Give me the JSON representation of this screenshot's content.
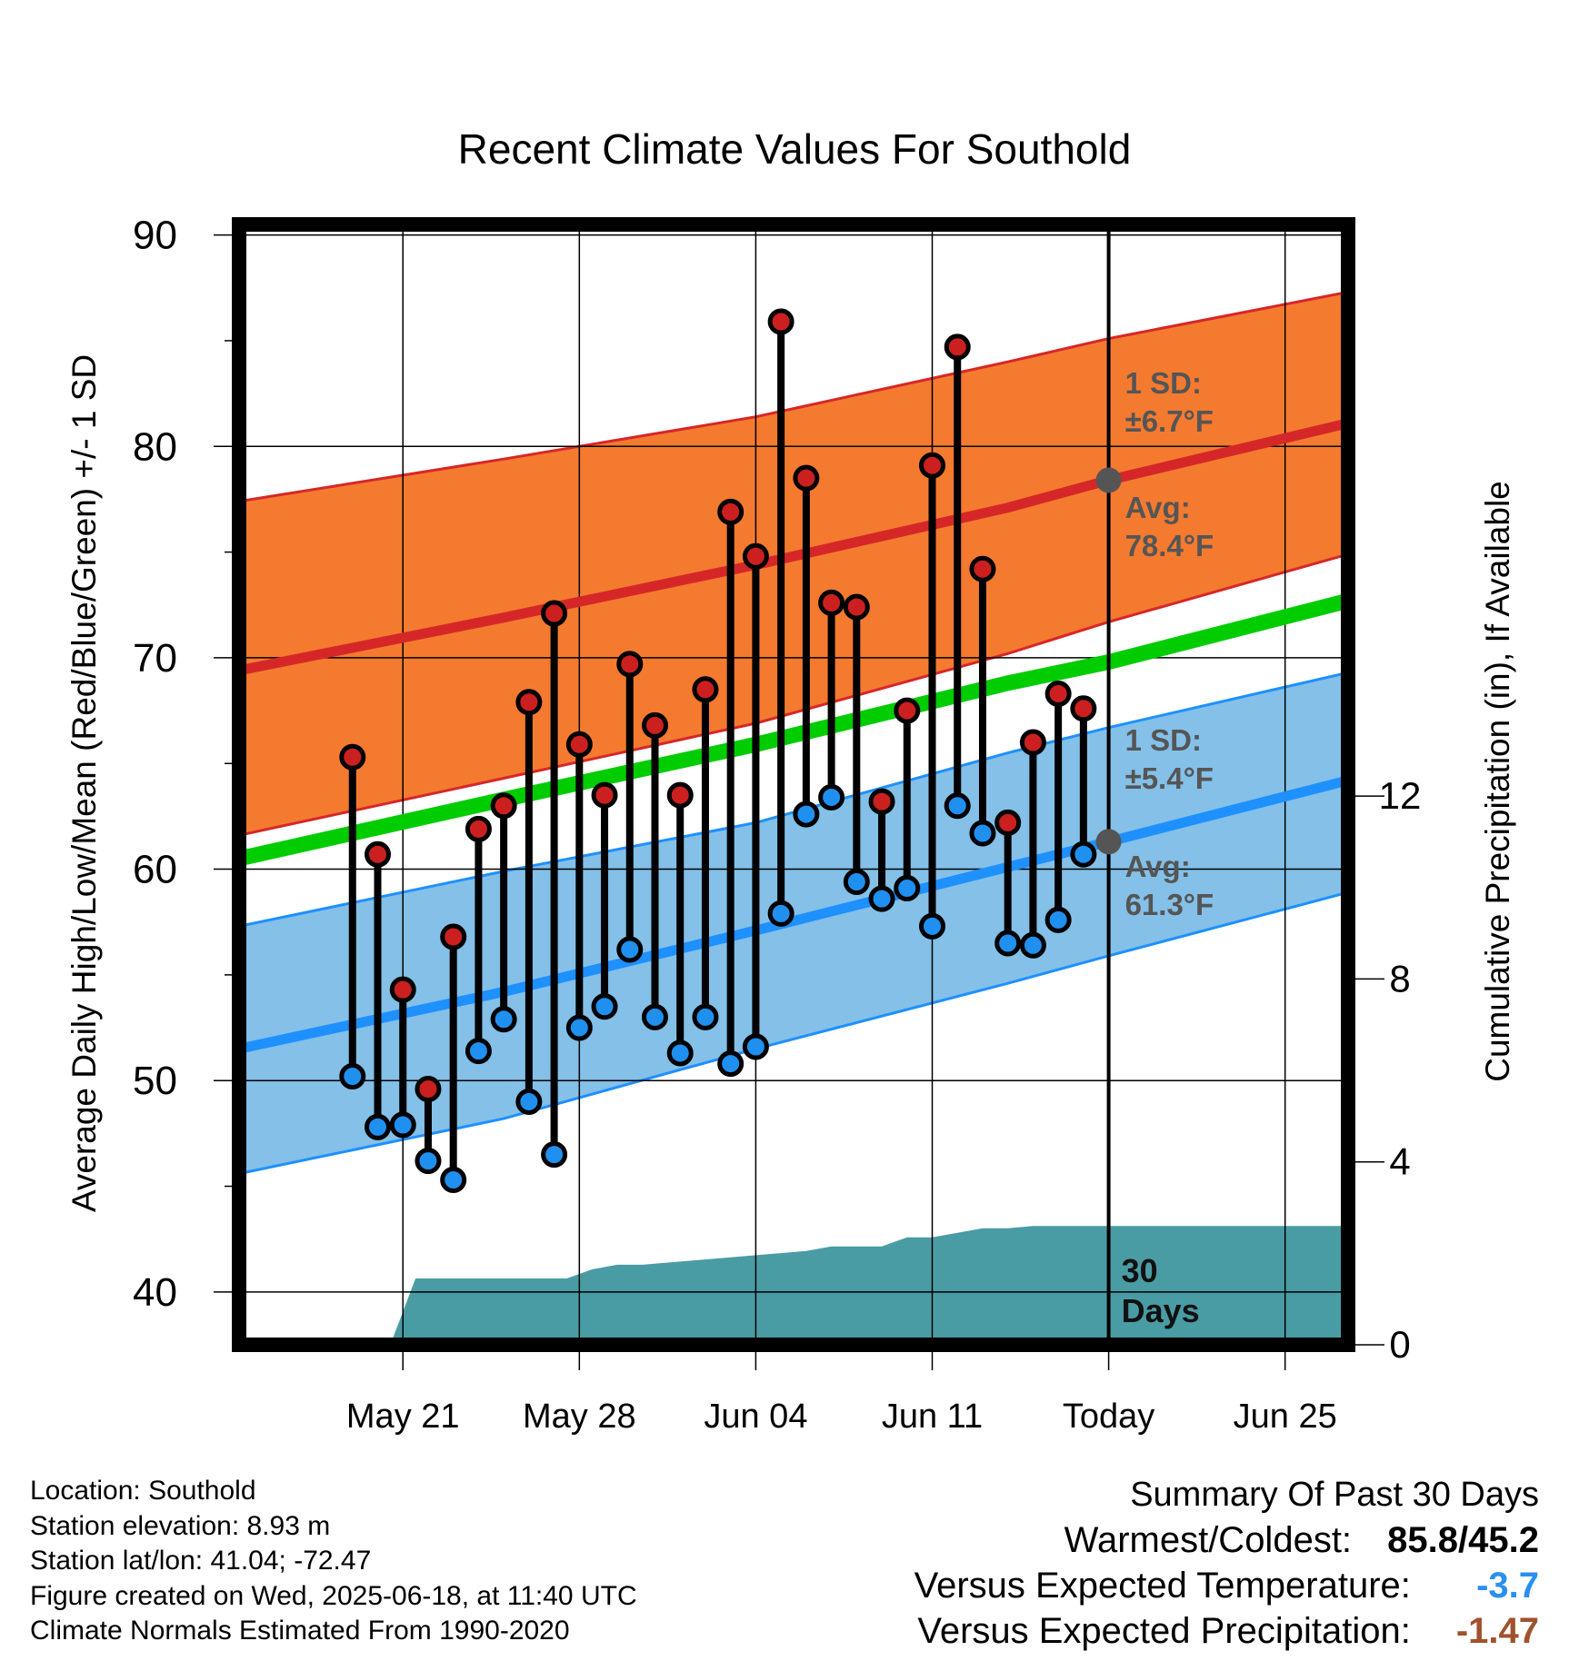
{
  "chart_data": {
    "type": "line",
    "title": "Recent Climate Values For Southold",
    "xlabel": "Day",
    "ylabel": "Average Daily High/Low/Mean (Red/Blue/Green) +/- 1 SD",
    "y2label": "Cumulative Precipitation (in), If Available",
    "ylim": [
      37.5,
      90.5
    ],
    "y2lim": [
      0,
      24.5
    ],
    "xlim_days": [
      -34.5,
      9.5
    ],
    "x_tick_labels": [
      {
        "day": -28,
        "label": "May 21"
      },
      {
        "day": -21,
        "label": "May 28"
      },
      {
        "day": -14,
        "label": "Jun 04"
      },
      {
        "day": -7,
        "label": "Jun 11"
      },
      {
        "day": 0,
        "label": "Today"
      },
      {
        "day": 7,
        "label": "Jun 25"
      }
    ],
    "y_ticks": [
      40,
      50,
      60,
      70,
      80,
      90
    ],
    "y2_ticks": [
      0,
      4,
      8,
      12
    ],
    "grid": true,
    "today_day": 0,
    "normals": {
      "days": [
        -34.5,
        -24,
        -14,
        -4,
        0,
        9.5
      ],
      "high_mean": [
        69.4,
        71.9,
        74.4,
        77.1,
        78.4,
        81.1
      ],
      "high_upper": [
        77.4,
        79.4,
        81.4,
        84.0,
        85.1,
        87.3
      ],
      "high_lower": [
        61.6,
        64.3,
        66.9,
        70.2,
        71.7,
        74.9
      ],
      "avg_mean": [
        60.5,
        63.3,
        65.9,
        68.8,
        69.8,
        72.7
      ],
      "low_mean": [
        51.5,
        54.2,
        57.1,
        60.1,
        61.3,
        64.2
      ],
      "low_upper": [
        57.3,
        59.9,
        62.2,
        65.5,
        66.7,
        69.3
      ],
      "low_lower": [
        45.6,
        48.2,
        51.5,
        54.6,
        55.9,
        58.9
      ]
    },
    "series": [
      {
        "name": "High",
        "color": "#cc2020",
        "days": [
          -30,
          -29,
          -28,
          -27,
          -26,
          -25,
          -24,
          -23,
          -22,
          -21,
          -20,
          -19,
          -18,
          -17,
          -16,
          -15,
          -14,
          -13,
          -12,
          -11,
          -10,
          -9,
          -8,
          -7,
          -6,
          -5,
          -4,
          -3,
          -2,
          -1
        ],
        "values": [
          65.3,
          60.7,
          54.3,
          49.6,
          56.8,
          61.9,
          63.0,
          67.9,
          72.1,
          65.9,
          63.5,
          69.7,
          66.8,
          63.5,
          68.5,
          76.9,
          74.8,
          85.9,
          78.5,
          72.6,
          72.4,
          63.2,
          67.5,
          79.1,
          84.7,
          74.2,
          62.2,
          66.0,
          68.3,
          67.6
        ]
      },
      {
        "name": "Low",
        "color": "#2090f0",
        "days": [
          -30,
          -29,
          -28,
          -27,
          -26,
          -25,
          -24,
          -23,
          -22,
          -21,
          -20,
          -19,
          -18,
          -17,
          -16,
          -15,
          -14,
          -13,
          -12,
          -11,
          -10,
          -9,
          -8,
          -7,
          -6,
          -5,
          -4,
          -3,
          -2,
          -1
        ],
        "values": [
          50.2,
          47.8,
          47.9,
          46.2,
          45.3,
          51.4,
          52.9,
          49.0,
          46.5,
          52.5,
          53.5,
          56.2,
          53.0,
          51.3,
          53.0,
          50.8,
          51.6,
          57.9,
          62.6,
          63.4,
          59.4,
          58.6,
          59.1,
          57.3,
          63.0,
          61.7,
          56.5,
          56.4,
          57.6,
          60.7
        ]
      }
    ],
    "precip": {
      "days": [
        -28.5,
        -27.5,
        -21.5,
        -20.5,
        -19.5,
        -18.5,
        -12,
        -11,
        -9,
        -8,
        -7,
        -5,
        -4,
        -3,
        0,
        9.5
      ],
      "values": [
        0.0,
        1.45,
        1.45,
        1.65,
        1.75,
        1.75,
        2.05,
        2.15,
        2.15,
        2.35,
        2.35,
        2.55,
        2.55,
        2.6,
        2.6,
        2.6
      ]
    },
    "annotations": {
      "high_sd": "1 SD:",
      "high_sd_val": "±6.7°F",
      "high_avg": "Avg:",
      "high_avg_val": "78.4°F",
      "low_sd": "1 SD:",
      "low_sd_val": "±5.4°F",
      "low_avg": "Avg:",
      "low_avg_val": "61.3°F",
      "days_num": "30",
      "days_word": "Days"
    },
    "colors": {
      "high_band": "#f47a30",
      "high_line": "#d62728",
      "low_band": "#84c0e8",
      "low_line": "#1e90ff",
      "mean_line": "#00cc00",
      "precip": "#4a9ca4",
      "annotation": "#555555"
    }
  },
  "info": {
    "location": "Location: Southold",
    "elevation": "Station elevation: 8.93 m",
    "latlon": "Station lat/lon: 41.04; -72.47",
    "created": "Figure created on Wed, 2025-06-18, at 11:40 UTC",
    "normals": "Climate Normals Estimated From 1990-2020"
  },
  "summary": {
    "title": "Summary Of Past 30 Days",
    "warm_cold_label": "Warmest/Coldest:",
    "warm_cold_value": "85.8/45.2",
    "temp_label": "Versus Expected Temperature:",
    "temp_value": "-3.7",
    "temp_color": "#2a8ff0",
    "precip_label": "Versus Expected Precipitation:",
    "precip_value": "-1.47",
    "precip_color": "#a0522d"
  }
}
